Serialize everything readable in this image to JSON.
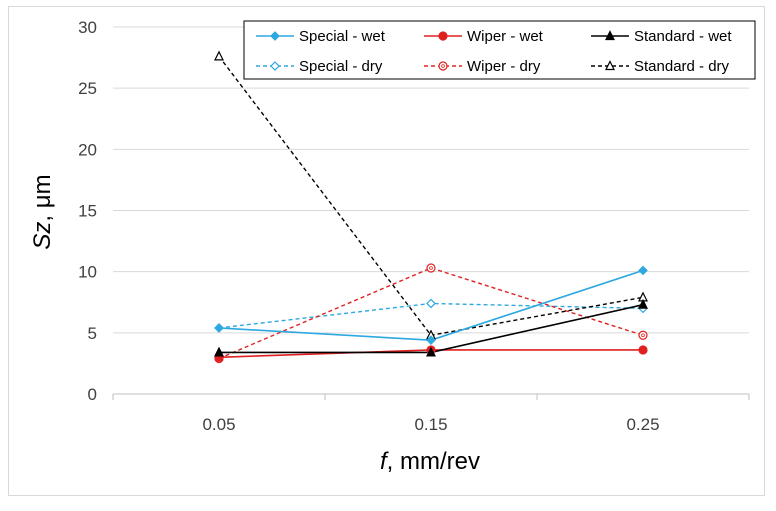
{
  "chart_data": {
    "type": "line",
    "x": [
      0.05,
      0.15,
      0.25
    ],
    "x_tick_labels": [
      "0.05",
      "0.15",
      "0.25"
    ],
    "xlim": [
      0,
      0.3
    ],
    "ylim": [
      0,
      30
    ],
    "y_ticks": [
      0,
      5,
      10,
      15,
      20,
      25,
      30
    ],
    "xlabel_italic": "f",
    "xlabel_rest": ", mm/rev",
    "ylabel_italic": "Sz",
    "ylabel_rest": ", μm",
    "grid": "horizontal",
    "legend_position": "top-right",
    "series": [
      {
        "name": "Special - wet",
        "values": [
          5.4,
          4.4,
          10.1
        ],
        "color": "#2ea8e0",
        "dash": "solid",
        "marker": "diamond-filled"
      },
      {
        "name": "Wiper - wet",
        "values": [
          3.0,
          3.6,
          3.6
        ],
        "color": "#e02020",
        "dash": "solid",
        "marker": "circle-filled"
      },
      {
        "name": "Standard - wet",
        "values": [
          3.4,
          3.4,
          7.3
        ],
        "color": "#000000",
        "dash": "solid",
        "marker": "triangle-filled"
      },
      {
        "name": "Special - dry",
        "values": [
          5.4,
          7.4,
          7.0
        ],
        "color": "#2ea8e0",
        "dash": "dashed",
        "marker": "diamond-open"
      },
      {
        "name": "Wiper - dry",
        "values": [
          2.9,
          10.3,
          4.8
        ],
        "color": "#e02020",
        "dash": "dashed",
        "marker": "circle-open"
      },
      {
        "name": "Standard - dry",
        "values": [
          27.6,
          4.8,
          7.9
        ],
        "color": "#000000",
        "dash": "dashed",
        "marker": "triangle-open"
      }
    ]
  }
}
